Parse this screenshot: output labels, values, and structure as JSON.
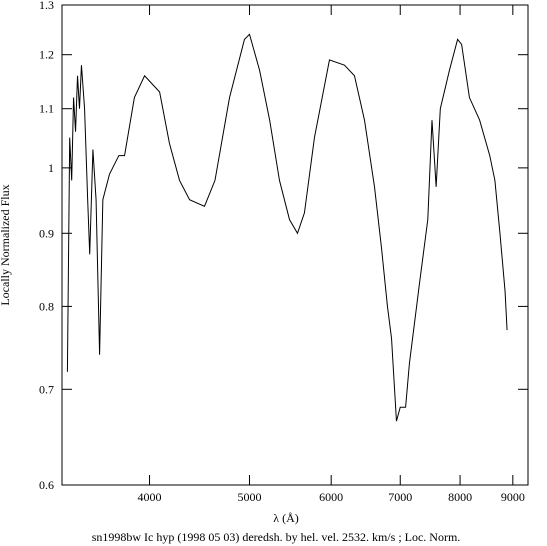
{
  "chart_data": {
    "type": "line",
    "title": "sn1998bw Ic hyp (1998 05 03) deredsh. by hel. vel.  2532. km/s ;  Loc. Norm.",
    "xlabel": "λ (Å)",
    "ylabel": "Locally Normalized Flux",
    "xscale": "log",
    "yscale": "log",
    "xlim": [
      3290,
      9310
    ],
    "ylim": [
      0.6,
      1.3
    ],
    "xticks": [
      4000,
      5000,
      6000,
      7000,
      8000,
      9000
    ],
    "yticks": [
      0.6,
      0.7,
      0.8,
      0.9,
      1,
      1.1,
      1.2,
      1.3
    ],
    "series": [
      {
        "color": "#000000",
        "x": [
          3330,
          3347,
          3362,
          3376,
          3391,
          3406,
          3421,
          3436,
          3460,
          3484,
          3500,
          3525,
          3550,
          3578,
          3604,
          3658,
          3735,
          3783,
          3867,
          3956,
          4000,
          4091,
          4182,
          4277,
          4374,
          4522,
          4629,
          4782,
          4944,
          5000,
          5114,
          5230,
          5346,
          5467,
          5565,
          5652,
          5780,
          5977,
          6181,
          6320,
          6463,
          6609,
          6712,
          6803,
          6865,
          6941,
          7000,
          7084,
          7145,
          7307,
          7444,
          7514,
          7584,
          7655,
          7812,
          7956,
          8028,
          8169,
          8357,
          8548,
          8647,
          8745,
          8845,
          8885
        ],
        "values": [
          0.72,
          1.05,
          0.98,
          1.12,
          1.06,
          1.16,
          1.1,
          1.18,
          1.1,
          0.95,
          0.87,
          1.03,
          0.95,
          0.74,
          0.95,
          0.99,
          1.02,
          1.02,
          1.12,
          1.16,
          1.15,
          1.13,
          1.04,
          0.98,
          0.95,
          0.94,
          0.98,
          1.12,
          1.23,
          1.24,
          1.17,
          1.08,
          0.98,
          0.92,
          0.9,
          0.93,
          1.05,
          1.19,
          1.18,
          1.16,
          1.08,
          0.97,
          0.88,
          0.8,
          0.76,
          0.665,
          0.68,
          0.68,
          0.73,
          0.83,
          0.92,
          1.08,
          0.97,
          1.1,
          1.17,
          1.23,
          1.22,
          1.12,
          1.08,
          1.02,
          0.98,
          0.9,
          0.82,
          0.77
        ]
      }
    ]
  }
}
